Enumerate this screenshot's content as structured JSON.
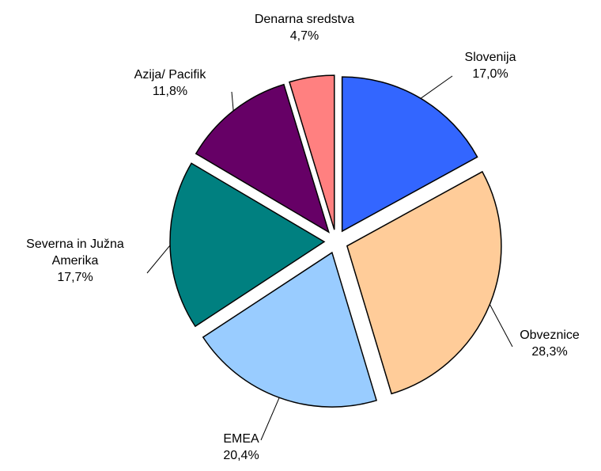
{
  "chart_data": {
    "type": "pie",
    "categories": [
      "Slovenija",
      "Obveznice",
      "EMEA",
      "Severna in Južna Amerika",
      "Azija/ Pacifik",
      "Denarna sredstva"
    ],
    "values": [
      17.0,
      28.3,
      20.4,
      17.7,
      11.8,
      4.7
    ],
    "value_labels": [
      "17,0%",
      "28,3%",
      "20,4%",
      "17,7%",
      "11,8%",
      "4,7%"
    ],
    "colors": [
      "#3366ff",
      "#ffcc99",
      "#99ccff",
      "#008080",
      "#660066",
      "#ff8080"
    ]
  }
}
